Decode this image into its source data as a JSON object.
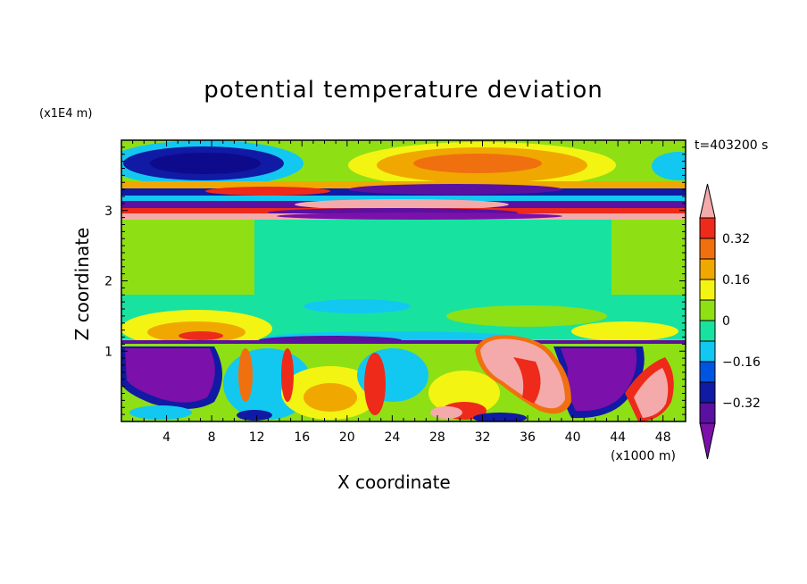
{
  "title": "potential temperature deviation",
  "time_label": "t=403200 s",
  "y_unit": "(x1E4 m)",
  "x_unit": "(x1000 m)",
  "chart_data": {
    "type": "heatmap",
    "title": "potential temperature deviation",
    "xlabel": "X coordinate",
    "ylabel": "Z coordinate",
    "x_unit": "(x1000 m)",
    "y_unit": "(x1E4 m)",
    "annotation": "t=403200 s",
    "xlim": [
      0,
      50
    ],
    "ylim": [
      0,
      4
    ],
    "x_ticks": [
      4,
      8,
      12,
      16,
      20,
      24,
      28,
      32,
      36,
      40,
      44,
      48
    ],
    "y_ticks": [
      1,
      2,
      3
    ],
    "colorbar": {
      "levels": [
        -0.48,
        -0.4,
        -0.32,
        -0.24,
        -0.16,
        -0.08,
        0,
        0.08,
        0.16,
        0.24,
        0.32,
        0.4
      ],
      "tick_labels": [
        "0.32",
        "0.16",
        "0",
        "−0.16",
        "−0.32"
      ],
      "tick_values": [
        0.32,
        0.16,
        0,
        -0.16,
        -0.32
      ],
      "colors": [
        "#7b10aa",
        "#5a10a0",
        "#101aa4",
        "#0055e0",
        "#12c8f0",
        "#18e2a0",
        "#8ee014",
        "#f4f412",
        "#f0a800",
        "#f07010",
        "#ee2a1a",
        "#f4aaaa"
      ],
      "extend": "both",
      "placement": "right"
    },
    "grid": false,
    "features": [
      {
        "region": "upper stratosphere z 3.4-4.0",
        "description": "negative anomaly (dark blue) centered near x=6, positive anomaly (orange) centered near x=31"
      },
      {
        "region": "tropopause z 2.9-3.3",
        "description": "banded layers alternating pink, blue, purple across full width"
      },
      {
        "region": "mid troposphere z 1.2-2.8",
        "description": "near zero values (green), small positive band near z=1.4"
      },
      {
        "region": "boundary layer z 0-1.1",
        "description": "turbulent mixed anomalies: purple negative near x=2-12 and x=40-46, pink positive plume near x=30-38"
      }
    ]
  }
}
